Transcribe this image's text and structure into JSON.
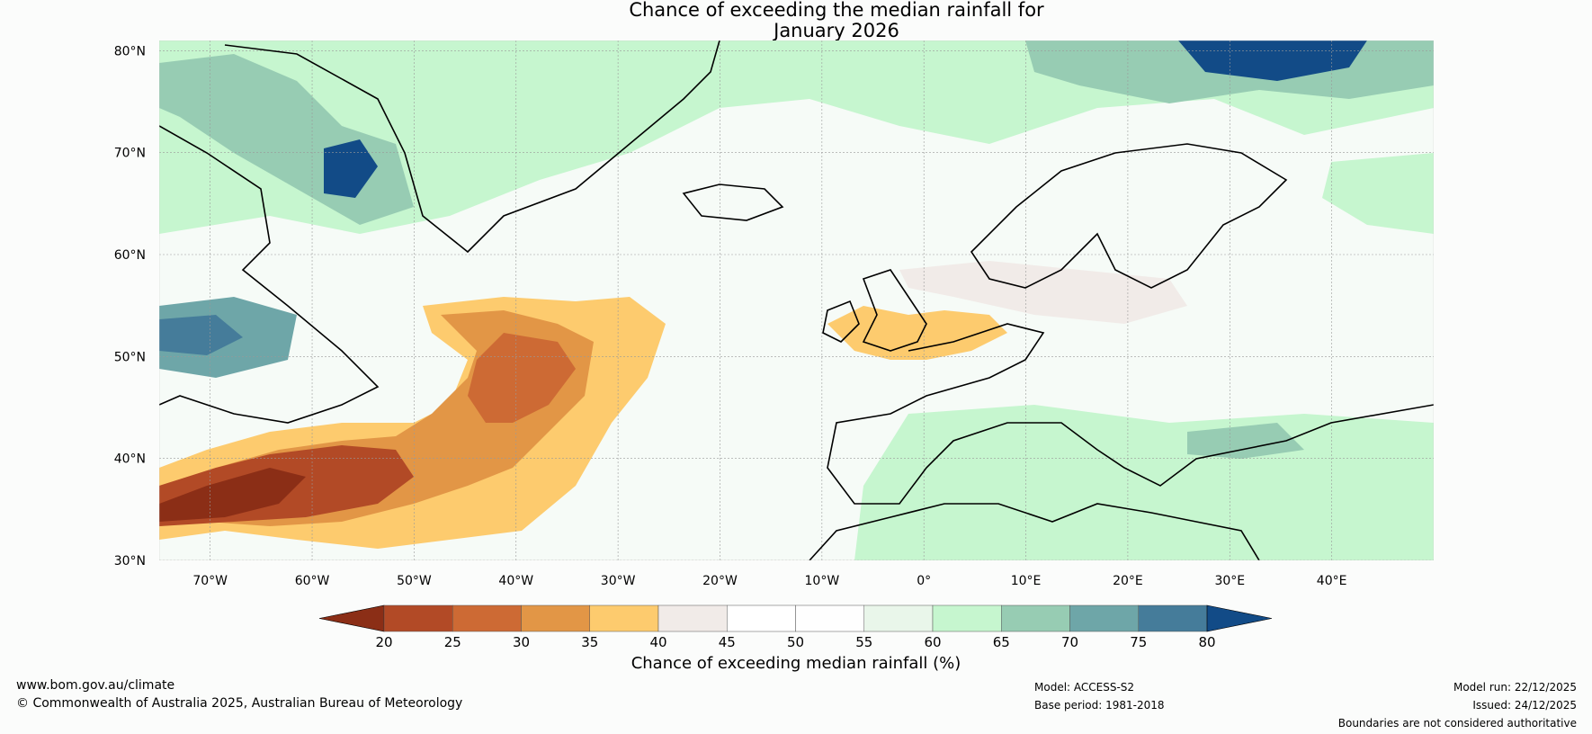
{
  "title": {
    "line1": "Chance of exceeding the median rainfall for",
    "line2": "January 2026"
  },
  "map": {
    "lat_labels": [
      "80°N",
      "70°N",
      "60°N",
      "50°N",
      "40°N",
      "30°N"
    ],
    "lon_labels": [
      "70°W",
      "60°W",
      "50°W",
      "40°W",
      "30°W",
      "20°W",
      "10°W",
      "0°",
      "10°E",
      "20°E",
      "30°E",
      "40°E"
    ],
    "lat_range": [
      30,
      81
    ],
    "lon_range": [
      -75,
      50
    ]
  },
  "colorbar": {
    "ticks": [
      "20",
      "25",
      "30",
      "35",
      "40",
      "45",
      "50",
      "55",
      "60",
      "65",
      "70",
      "75",
      "80"
    ],
    "colors": [
      "#8b2e16",
      "#b24a26",
      "#cd6a34",
      "#e29646",
      "#fdcb6e",
      "#f1ebe8",
      "#ffffff",
      "#fefefe",
      "#e9f6ea",
      "#c6f6cf",
      "#97ccb3",
      "#6ea6a8",
      "#457c9a",
      "#124b87"
    ],
    "label": "Chance of exceeding median rainfall (%)"
  },
  "footer": {
    "website": "www.bom.gov.au/climate",
    "copyright": "© Commonwealth of Australia 2025, Australian Bureau of Meteorology",
    "model": "Model: ACCESS-S2",
    "base_period": "Base period: 1981-2018",
    "model_run": "Model run: 22/12/2025",
    "issued": "Issued: 24/12/2025",
    "disclaimer": "Boundaries are not considered authoritative"
  }
}
